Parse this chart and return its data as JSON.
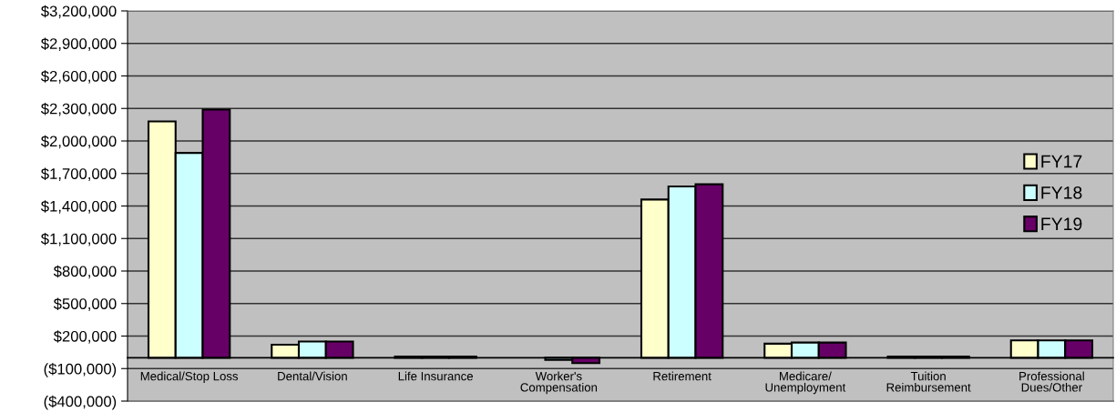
{
  "chart_data": {
    "type": "bar",
    "categories": [
      "Medical/Stop Loss",
      "Dental/Vision",
      "Life Insurance",
      "Worker's\nCompensation",
      "Retirement",
      "Medicare/\nUnemployment",
      "Tuition\nReimbursement",
      "Professional\nDues/Other"
    ],
    "series": [
      {
        "name": "FY17",
        "color": "#ffffcc",
        "values": [
          2180000,
          120000,
          10000,
          null,
          1460000,
          130000,
          10000,
          160000
        ]
      },
      {
        "name": "FY18",
        "color": "#ccffff",
        "values": [
          1890000,
          150000,
          10000,
          -20000,
          1580000,
          140000,
          10000,
          160000
        ]
      },
      {
        "name": "FY19",
        "color": "#660066",
        "values": [
          2290000,
          150000,
          10000,
          -50000,
          1600000,
          140000,
          10000,
          160000
        ]
      }
    ],
    "ylim": [
      -400000,
      3200000
    ],
    "yticks": [
      {
        "value": -400000,
        "label": "($400,000)"
      },
      {
        "value": -100000,
        "label": "($100,000)"
      },
      {
        "value": 200000,
        "label": "$200,000"
      },
      {
        "value": 500000,
        "label": "$500,000"
      },
      {
        "value": 800000,
        "label": "$800,000"
      },
      {
        "value": 1100000,
        "label": "$1,100,000"
      },
      {
        "value": 1400000,
        "label": "$1,400,000"
      },
      {
        "value": 1700000,
        "label": "$1,700,000"
      },
      {
        "value": 2000000,
        "label": "$2,000,000"
      },
      {
        "value": 2300000,
        "label": "$2,300,000"
      },
      {
        "value": 2600000,
        "label": "$2,600,000"
      },
      {
        "value": 2900000,
        "label": "$2,900,000"
      },
      {
        "value": 3200000,
        "label": "$3,200,000"
      }
    ],
    "grid": "y",
    "legend": "right"
  }
}
